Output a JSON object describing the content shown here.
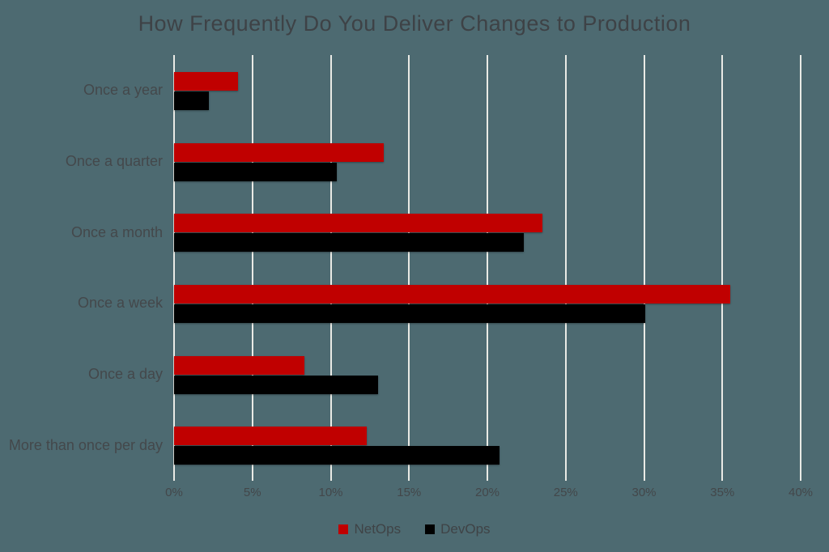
{
  "title": "How Frequently Do You Deliver Changes to Production",
  "colors": {
    "background": "#4d6a71",
    "gridline": "#e9eae5",
    "text": "#44484b",
    "netops_red": "#c00000",
    "devops_black": "#000000"
  },
  "chart_data": {
    "type": "bar",
    "orientation": "horizontal",
    "title": "How Frequently Do You Deliver Changes to Production",
    "categories": [
      "Once a year",
      "Once a quarter",
      "Once a month",
      "Once a week",
      "Once a day",
      "More than once per day"
    ],
    "series": [
      {
        "name": "NetOps",
        "color": "#c00000",
        "values": [
          4.1,
          13.4,
          23.5,
          35.5,
          8.3,
          12.3
        ]
      },
      {
        "name": "DevOps",
        "color": "#000000",
        "values": [
          2.2,
          10.4,
          22.3,
          30.1,
          13.0,
          20.8
        ]
      }
    ],
    "xlabel": "",
    "ylabel": "",
    "xlim": [
      0,
      40
    ],
    "x_tick_step": 5,
    "x_tick_labels": [
      "0%",
      "5%",
      "10%",
      "15%",
      "20%",
      "25%",
      "30%",
      "35%",
      "40%"
    ],
    "grid": "vertical-white",
    "legend_position": "bottom-center"
  },
  "legend": {
    "items": [
      {
        "label": "NetOps",
        "color": "#c00000"
      },
      {
        "label": "DevOps",
        "color": "#000000"
      }
    ]
  }
}
